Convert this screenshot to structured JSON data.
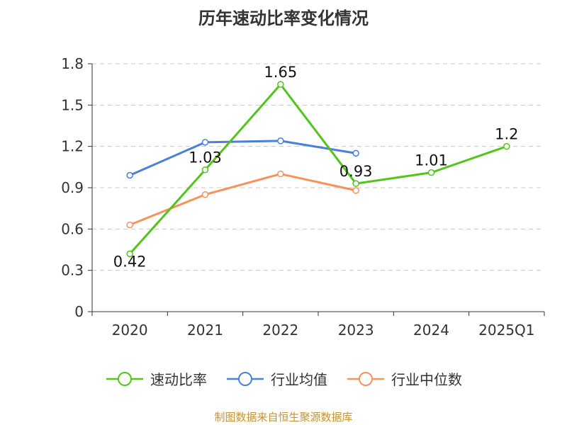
{
  "chart_data": {
    "type": "line",
    "title": "历年速动比率变化情况",
    "categories": [
      "2020",
      "2021",
      "2022",
      "2023",
      "2024",
      "2025Q1"
    ],
    "ylim": [
      0,
      1.8
    ],
    "yticks": [
      "0",
      "0.3",
      "0.6",
      "0.9",
      "1.2",
      "1.5",
      "1.8"
    ],
    "grid": true,
    "legend_position": "bottom",
    "series": [
      {
        "name": "速动比率",
        "color": "#52c41a",
        "values": [
          0.42,
          1.03,
          1.65,
          0.93,
          1.01,
          1.2
        ],
        "labels": [
          "0.42",
          "1.03",
          "1.65",
          "0.93",
          "1.01",
          "1.2"
        ]
      },
      {
        "name": "行业均值",
        "color": "#4a7fdc",
        "values": [
          0.99,
          1.23,
          1.24,
          1.15,
          null,
          null
        ]
      },
      {
        "name": "行业中位数",
        "color": "#f7925a",
        "values": [
          0.63,
          0.85,
          1.0,
          0.88,
          null,
          null
        ]
      }
    ]
  },
  "footer": {
    "source": "制图数据来自恒生聚源数据库"
  }
}
